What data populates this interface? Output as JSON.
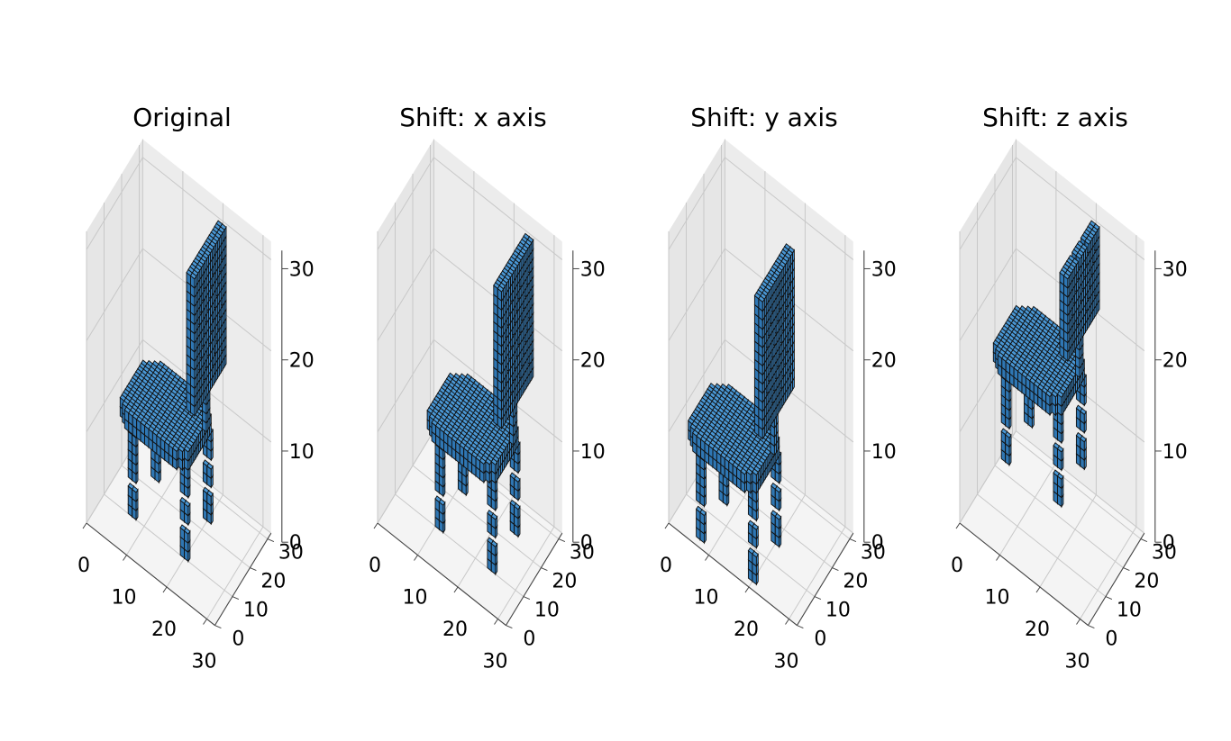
{
  "figure": {
    "background": "#ffffff",
    "pane_color": "#f2f2f2",
    "grid_color": "#c8c8c8",
    "voxel_face": "#3a84c0",
    "voxel_edge": "#111111"
  },
  "chart_data": [
    {
      "type": "voxel3d",
      "title": "Original",
      "xlim": [
        0,
        32
      ],
      "ylim": [
        0,
        32
      ],
      "zlim": [
        0,
        32
      ],
      "xticks": [
        "0",
        "10",
        "20",
        "30"
      ],
      "yticks": [
        "0",
        "10",
        "20",
        "30"
      ],
      "zticks": [
        "0",
        "10",
        "20",
        "30"
      ],
      "grid": true,
      "shift": [
        0,
        0,
        0
      ]
    },
    {
      "type": "voxel3d",
      "title": "Shift: x axis",
      "xlim": [
        0,
        32
      ],
      "ylim": [
        0,
        32
      ],
      "zlim": [
        0,
        32
      ],
      "xticks": [
        "0",
        "10",
        "20",
        "30"
      ],
      "yticks": [
        "0",
        "10",
        "20",
        "30"
      ],
      "zticks": [
        "0",
        "10",
        "20",
        "30"
      ],
      "grid": true,
      "shift": [
        4,
        0,
        0
      ]
    },
    {
      "type": "voxel3d",
      "title": "Shift: y axis",
      "xlim": [
        0,
        32
      ],
      "ylim": [
        0,
        32
      ],
      "zlim": [
        0,
        32
      ],
      "xticks": [
        "0",
        "10",
        "20",
        "30"
      ],
      "yticks": [
        "0",
        "10",
        "20",
        "30"
      ],
      "zticks": [
        "0",
        "10",
        "20",
        "30"
      ],
      "grid": true,
      "shift": [
        0,
        -8,
        0
      ]
    },
    {
      "type": "voxel3d",
      "title": "Shift: z axis",
      "xlim": [
        0,
        32
      ],
      "ylim": [
        0,
        32
      ],
      "zlim": [
        0,
        32
      ],
      "xticks": [
        "0",
        "10",
        "20",
        "30"
      ],
      "yticks": [
        "0",
        "10",
        "20",
        "30"
      ],
      "zticks": [
        "0",
        "10",
        "20",
        "30"
      ],
      "grid": true,
      "shift": [
        0,
        0,
        6
      ]
    }
  ]
}
